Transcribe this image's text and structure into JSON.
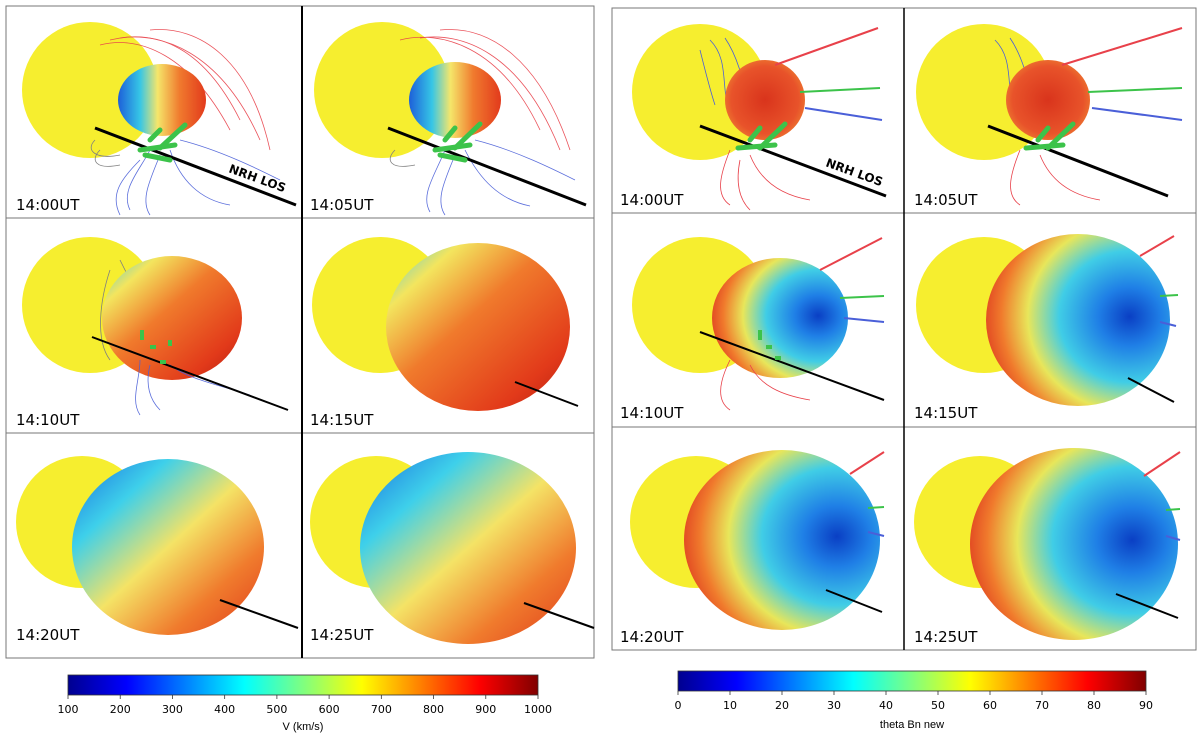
{
  "left_figure": {
    "panels": [
      "14:00UT",
      "14:05UT",
      "14:10UT",
      "14:15UT",
      "14:20UT",
      "14:25UT"
    ],
    "los_label": "NRH LOS",
    "colorbar": {
      "label": "V (km/s)",
      "ticks": [
        "100",
        "200",
        "300",
        "400",
        "500",
        "600",
        "700",
        "800",
        "900",
        "1000"
      ],
      "min": 100,
      "max": 1000
    }
  },
  "right_figure": {
    "panels": [
      "14:00UT",
      "14:05UT",
      "14:10UT",
      "14:15UT",
      "14:20UT",
      "14:25UT"
    ],
    "los_label": "NRH LOS",
    "colorbar": {
      "label": "theta Bn new",
      "ticks": [
        "0",
        "10",
        "20",
        "30",
        "40",
        "50",
        "60",
        "70",
        "80",
        "90"
      ],
      "min": 0,
      "max": 90
    }
  },
  "colors": {
    "sun": "#f6ee2f",
    "los_line": "#000000",
    "field_red": "#e8414a",
    "field_blue": "#4a5fd8",
    "field_grey": "#808080",
    "field_green": "#3cc34a"
  }
}
